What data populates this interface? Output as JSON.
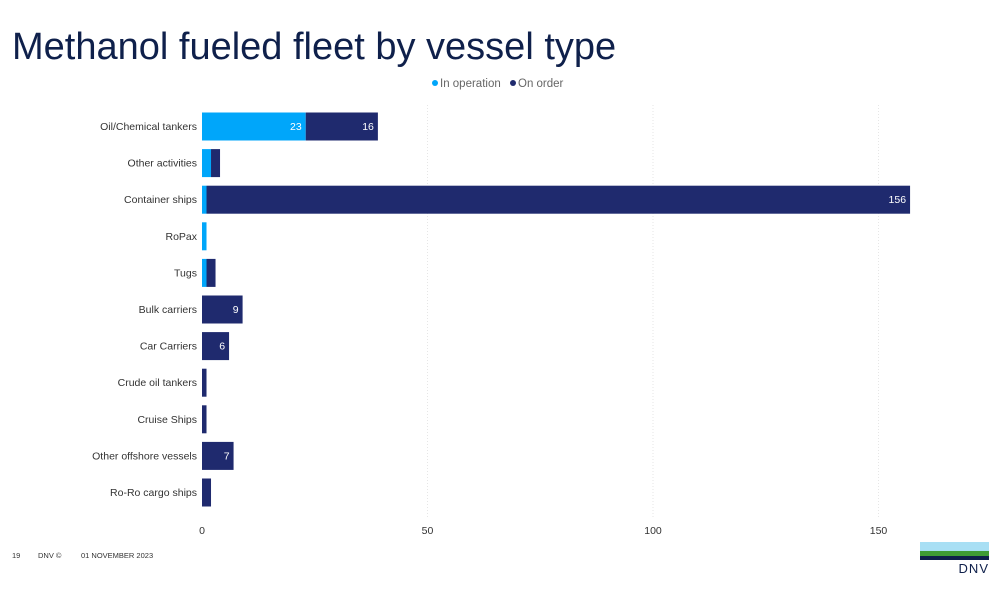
{
  "slide": {
    "title": "Methanol fueled fleet by vessel type",
    "page_number": "19",
    "copyright": "DNV ©",
    "date": "01 NOVEMBER 2023",
    "logo_text": "DNV"
  },
  "colors": {
    "in_operation": "#00a6fa",
    "on_order": "#1f2a6e",
    "title": "#0f204b",
    "logo_band_light": "#a8dff4",
    "logo_band_green": "#3f9c35",
    "logo_band_dark": "#0f204b"
  },
  "chart_data": {
    "type": "bar",
    "orientation": "horizontal",
    "stacked": true,
    "title": "",
    "xlabel": "",
    "ylabel": "",
    "xlim": [
      0,
      156
    ],
    "xticks": [
      0,
      50,
      100,
      150
    ],
    "grid": true,
    "legend_position": "top",
    "categories": [
      "Oil/Chemical tankers",
      "Other activities",
      "Container ships",
      "RoPax",
      "Tugs",
      "Bulk carriers",
      "Car Carriers",
      "Crude oil tankers",
      "Cruise Ships",
      "Other offshore vessels",
      "Ro-Ro cargo ships"
    ],
    "series": [
      {
        "name": "In operation",
        "color": "#00a6fa",
        "values": [
          23,
          2,
          1,
          1,
          1,
          0,
          0,
          0,
          0,
          0,
          0
        ],
        "labels": [
          "23",
          "",
          "",
          "",
          "",
          "",
          "",
          "",
          "",
          "",
          ""
        ]
      },
      {
        "name": "On order",
        "color": "#1f2a6e",
        "values": [
          16,
          2,
          156,
          0,
          2,
          9,
          6,
          1,
          1,
          7,
          2
        ],
        "labels": [
          "16",
          "",
          "156",
          "",
          "",
          "9",
          "6",
          "",
          "",
          "7",
          ""
        ]
      }
    ]
  }
}
